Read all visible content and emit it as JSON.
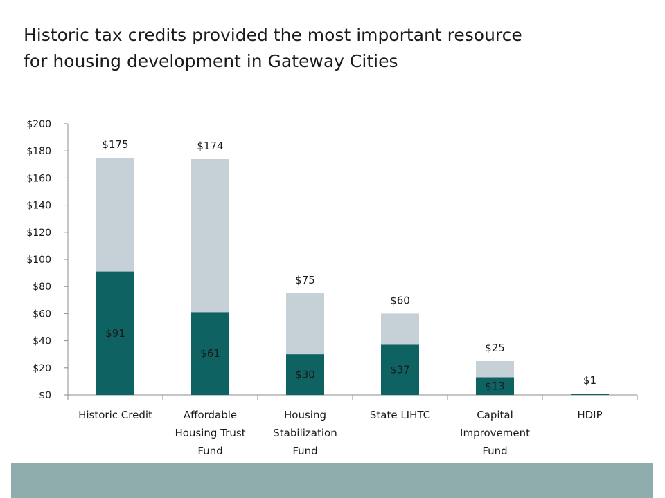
{
  "title_lines": [
    "Historic tax credits provided the most important resource",
    "for housing development in Gateway Cities"
  ],
  "colors": {
    "inner_bar": "#0f6262",
    "outer_bar": "#c6d1d7",
    "footer_band": "#8fadad",
    "axis": "#8c8c8c"
  },
  "chart_data": {
    "type": "bar",
    "stacked": true,
    "categories": [
      [
        "Historic Credit"
      ],
      [
        "Affordable",
        "Housing Trust",
        "Fund"
      ],
      [
        "Housing",
        "Stabilization",
        "Fund"
      ],
      [
        "State LIHTC"
      ],
      [
        "Capital",
        "Improvement",
        "Fund"
      ],
      [
        "HDIP"
      ]
    ],
    "inner_values": [
      91,
      61,
      30,
      37,
      13,
      0
    ],
    "inner_labels": [
      "$91",
      "$61",
      "$30",
      "$37",
      "$13",
      ""
    ],
    "total_values": [
      175,
      174,
      75,
      60,
      25,
      1
    ],
    "total_labels": [
      "$175",
      "$174",
      "$75",
      "$60",
      "$25",
      "$1"
    ],
    "y_ticks": [
      0,
      20,
      40,
      60,
      80,
      100,
      120,
      140,
      160,
      180,
      200
    ],
    "y_tick_labels": [
      "$0",
      "$20",
      "$40",
      "$60",
      "$80",
      "$100",
      "$120",
      "$140",
      "$160",
      "$180",
      "$200"
    ],
    "ylim": [
      0,
      200
    ],
    "xlabel": "",
    "ylabel": "",
    "grid": false,
    "legend": "none"
  }
}
